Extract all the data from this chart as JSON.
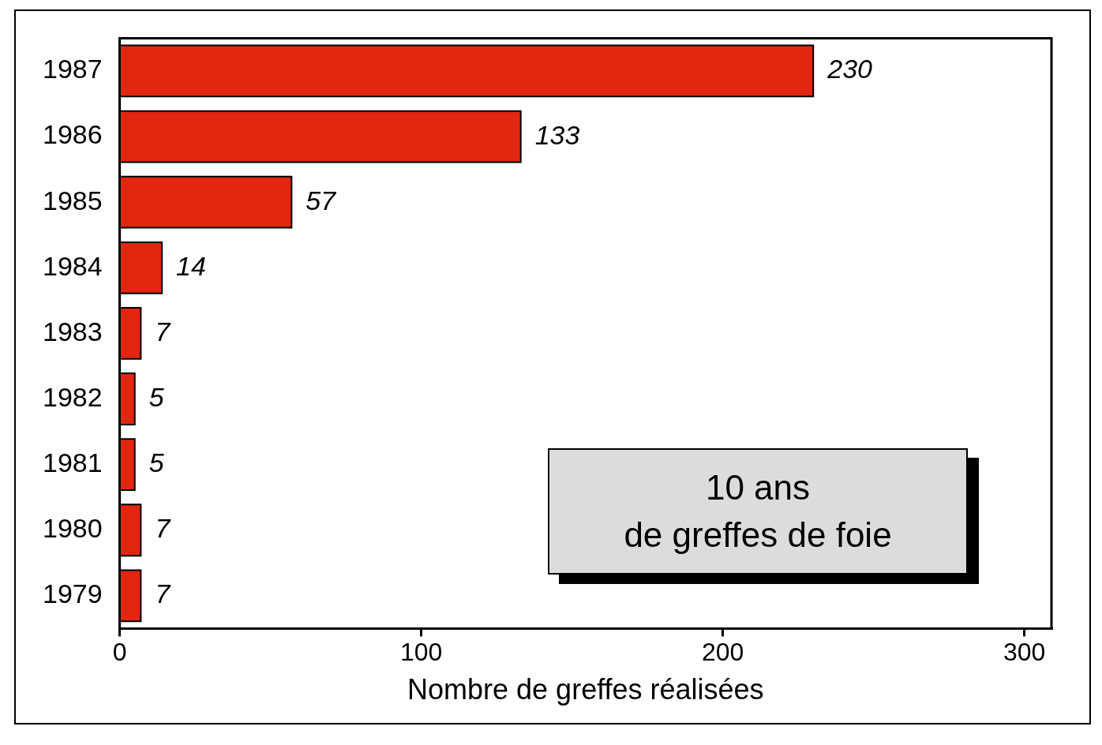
{
  "chart_data": {
    "type": "bar",
    "orientation": "horizontal",
    "title": "10 ans\nde greffes de foie",
    "xlabel": "Nombre de greffes réalisées",
    "categories": [
      "1987",
      "1986",
      "1985",
      "1984",
      "1983",
      "1982",
      "1981",
      "1980",
      "1979"
    ],
    "values": [
      230,
      133,
      57,
      14,
      7,
      5,
      5,
      7,
      7
    ],
    "color": "#e2260f",
    "xlim": [
      0,
      309
    ],
    "xticks": [
      0,
      100,
      200,
      300
    ],
    "grid": false,
    "legend": false,
    "data_labels": true
  }
}
